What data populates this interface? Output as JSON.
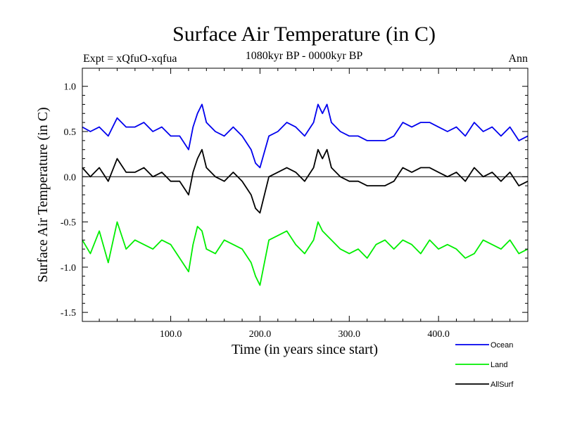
{
  "chart_data": {
    "type": "line",
    "title": "Surface Air Temperature (in C)",
    "subtitle": "1080kyr BP - 0000kyr BP",
    "expt_label": "Expt = xQfuO-xqfua",
    "season_label": "Ann",
    "xlabel": "Time (in years since start)",
    "ylabel": "Surface Air Temperature (in C)",
    "xlim": [
      1,
      500
    ],
    "ylim": [
      -1.6,
      1.2
    ],
    "xticks": [
      100,
      200,
      300,
      400
    ],
    "xtick_labels": [
      "100.0",
      "200.0",
      "300.0",
      "400.0"
    ],
    "yticks": [
      1.0,
      0.5,
      0.0,
      -0.5,
      -1.0,
      -1.5
    ],
    "ytick_labels": [
      "1.0",
      "0.5",
      "0.0",
      "-0.5",
      "-1.0",
      "-1.5"
    ],
    "reference_line": 0.0,
    "series": [
      {
        "name": "Ocean",
        "color": "#0000ee",
        "x": [
          1,
          10,
          20,
          30,
          40,
          50,
          60,
          70,
          80,
          90,
          100,
          110,
          120,
          125,
          130,
          135,
          140,
          150,
          160,
          170,
          180,
          190,
          195,
          200,
          210,
          220,
          230,
          240,
          250,
          260,
          265,
          270,
          275,
          280,
          290,
          300,
          310,
          320,
          330,
          340,
          350,
          360,
          370,
          380,
          390,
          400,
          410,
          420,
          430,
          440,
          450,
          460,
          470,
          480,
          490,
          500
        ],
        "values": [
          0.55,
          0.5,
          0.55,
          0.45,
          0.65,
          0.55,
          0.55,
          0.6,
          0.5,
          0.55,
          0.45,
          0.45,
          0.3,
          0.55,
          0.7,
          0.8,
          0.6,
          0.5,
          0.45,
          0.55,
          0.45,
          0.3,
          0.15,
          0.1,
          0.45,
          0.5,
          0.6,
          0.55,
          0.45,
          0.6,
          0.8,
          0.7,
          0.8,
          0.6,
          0.5,
          0.45,
          0.45,
          0.4,
          0.4,
          0.4,
          0.45,
          0.6,
          0.55,
          0.6,
          0.6,
          0.55,
          0.5,
          0.55,
          0.45,
          0.6,
          0.5,
          0.55,
          0.45,
          0.55,
          0.4,
          0.45
        ]
      },
      {
        "name": "Land",
        "color": "#00ee00",
        "x": [
          1,
          10,
          20,
          30,
          40,
          50,
          60,
          70,
          80,
          90,
          100,
          110,
          120,
          125,
          130,
          135,
          140,
          150,
          160,
          170,
          180,
          190,
          195,
          200,
          210,
          220,
          230,
          240,
          250,
          260,
          265,
          270,
          275,
          280,
          290,
          300,
          310,
          320,
          330,
          340,
          350,
          360,
          370,
          380,
          390,
          400,
          410,
          420,
          430,
          440,
          450,
          460,
          470,
          480,
          490,
          500
        ],
        "values": [
          -0.7,
          -0.85,
          -0.6,
          -0.95,
          -0.5,
          -0.8,
          -0.7,
          -0.75,
          -0.8,
          -0.7,
          -0.75,
          -0.9,
          -1.05,
          -0.75,
          -0.55,
          -0.6,
          -0.8,
          -0.85,
          -0.7,
          -0.75,
          -0.8,
          -0.95,
          -1.1,
          -1.2,
          -0.7,
          -0.65,
          -0.6,
          -0.75,
          -0.85,
          -0.7,
          -0.5,
          -0.6,
          -0.65,
          -0.7,
          -0.8,
          -0.85,
          -0.8,
          -0.9,
          -0.75,
          -0.7,
          -0.8,
          -0.7,
          -0.75,
          -0.85,
          -0.7,
          -0.8,
          -0.75,
          -0.8,
          -0.9,
          -0.85,
          -0.7,
          -0.75,
          -0.8,
          -0.7,
          -0.85,
          -0.8
        ]
      },
      {
        "name": "AllSurf",
        "color": "#000000",
        "x": [
          1,
          10,
          20,
          30,
          40,
          50,
          60,
          70,
          80,
          90,
          100,
          110,
          120,
          125,
          130,
          135,
          140,
          150,
          160,
          170,
          180,
          190,
          195,
          200,
          210,
          220,
          230,
          240,
          250,
          260,
          265,
          270,
          275,
          280,
          290,
          300,
          310,
          320,
          330,
          340,
          350,
          360,
          370,
          380,
          390,
          400,
          410,
          420,
          430,
          440,
          450,
          460,
          470,
          480,
          490,
          500
        ],
        "values": [
          0.1,
          0.0,
          0.1,
          -0.05,
          0.2,
          0.05,
          0.05,
          0.1,
          0.0,
          0.05,
          -0.05,
          -0.05,
          -0.2,
          0.05,
          0.2,
          0.3,
          0.1,
          0.0,
          -0.05,
          0.05,
          -0.05,
          -0.2,
          -0.35,
          -0.4,
          0.0,
          0.05,
          0.1,
          0.05,
          -0.05,
          0.1,
          0.3,
          0.2,
          0.3,
          0.1,
          0.0,
          -0.05,
          -0.05,
          -0.1,
          -0.1,
          -0.1,
          -0.05,
          0.1,
          0.05,
          0.1,
          0.1,
          0.05,
          0.0,
          0.05,
          -0.05,
          0.1,
          0.0,
          0.05,
          -0.05,
          0.05,
          -0.1,
          -0.05
        ]
      }
    ],
    "legend_position": "bottom-right"
  }
}
